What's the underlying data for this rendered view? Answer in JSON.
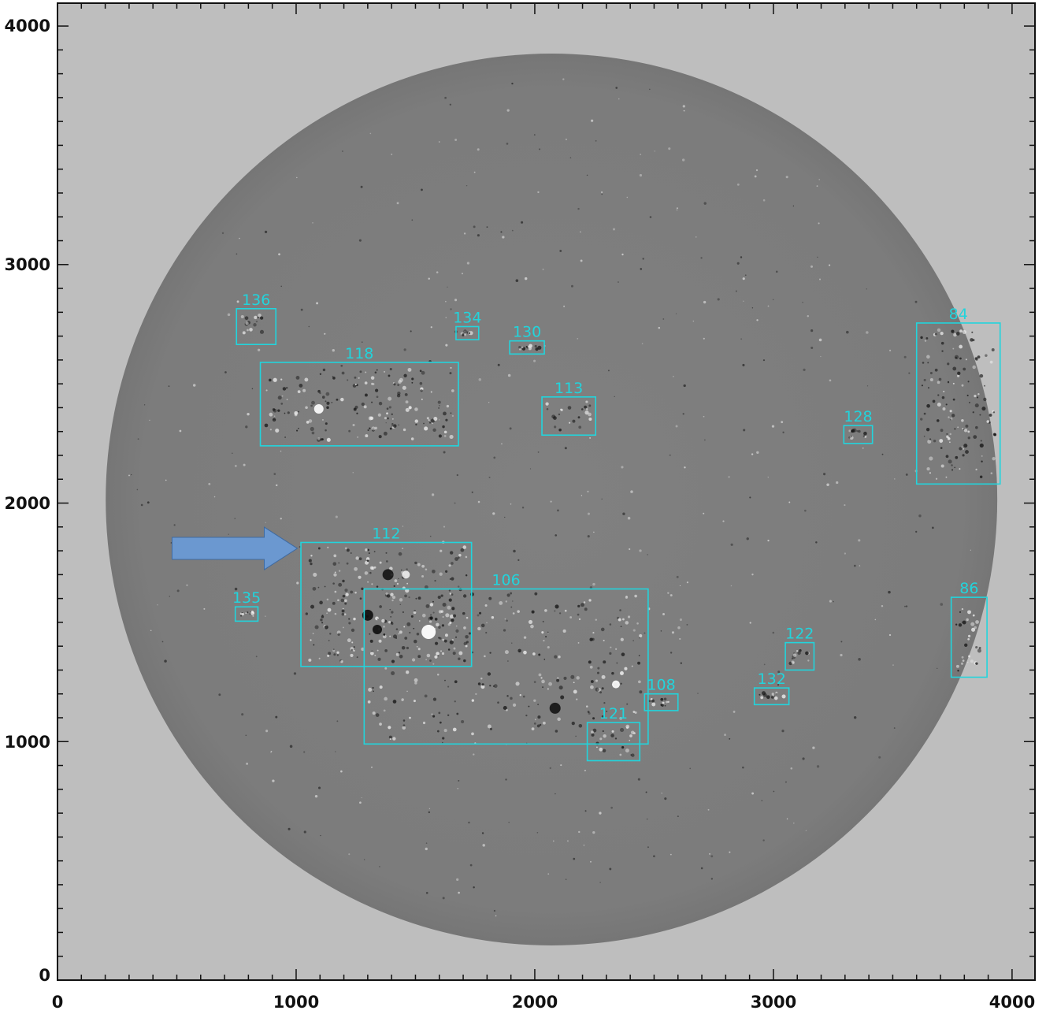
{
  "axes": {
    "x_ticks": [
      "0",
      "1000",
      "2000",
      "3000",
      "4000"
    ],
    "y_ticks": [
      "0",
      "1000",
      "2000",
      "3000",
      "4000"
    ],
    "x_range": [
      0,
      4096
    ],
    "y_range": [
      0,
      4096
    ]
  },
  "image": {
    "sun_center": [
      2070,
      2015
    ],
    "sun_radius": 1868
  },
  "colors": {
    "background": "#bebebe",
    "disk": "#7e7e7e",
    "box": "#22d4dc",
    "arrow": "#6b98d0",
    "arrow_stroke": "#3f6aa0",
    "frame": "#111111"
  },
  "regions": [
    {
      "label": "136",
      "x0": 750,
      "x1": 915,
      "y0": 2665,
      "y1": 2815
    },
    {
      "label": "118",
      "x0": 850,
      "x1": 1680,
      "y0": 2240,
      "y1": 2590
    },
    {
      "label": "134",
      "x0": 1670,
      "x1": 1765,
      "y0": 2685,
      "y1": 2740
    },
    {
      "label": "130",
      "x0": 1895,
      "x1": 2040,
      "y0": 2625,
      "y1": 2680
    },
    {
      "label": "113",
      "x0": 2030,
      "x1": 2255,
      "y0": 2285,
      "y1": 2445
    },
    {
      "label": "128",
      "x0": 3295,
      "x1": 3415,
      "y0": 2250,
      "y1": 2325
    },
    {
      "label": "84",
      "x0": 3600,
      "x1": 3950,
      "y0": 2080,
      "y1": 2755
    },
    {
      "label": "112",
      "x0": 1020,
      "x1": 1735,
      "y0": 1315,
      "y1": 1835
    },
    {
      "label": "106",
      "x0": 1285,
      "x1": 2475,
      "y0": 990,
      "y1": 1640
    },
    {
      "label": "135",
      "x0": 745,
      "x1": 840,
      "y0": 1505,
      "y1": 1565
    },
    {
      "label": "86",
      "x0": 3745,
      "x1": 3895,
      "y0": 1270,
      "y1": 1605
    },
    {
      "label": "122",
      "x0": 3050,
      "x1": 3170,
      "y0": 1300,
      "y1": 1415
    },
    {
      "label": "132",
      "x0": 2920,
      "x1": 3065,
      "y0": 1155,
      "y1": 1225
    },
    {
      "label": "108",
      "x0": 2460,
      "x1": 2600,
      "y0": 1130,
      "y1": 1200
    },
    {
      "label": "121",
      "x0": 2220,
      "x1": 2440,
      "y0": 920,
      "y1": 1080
    }
  ],
  "arrow": {
    "from": [
      480,
      1810
    ],
    "to": [
      1005,
      1810
    ]
  }
}
